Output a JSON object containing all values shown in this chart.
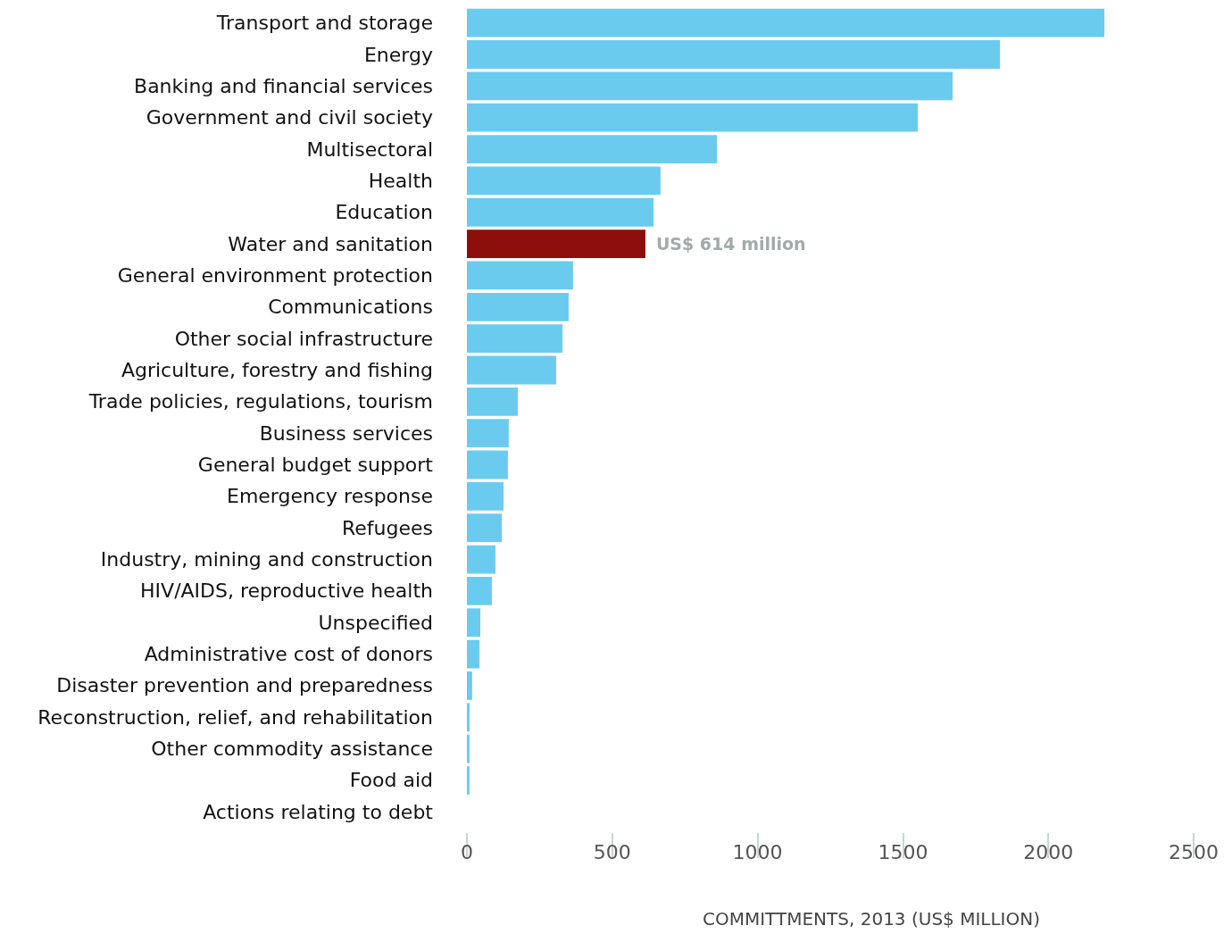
{
  "chart_data": {
    "type": "bar",
    "orientation": "horizontal",
    "xlabel": "COMMITTMENTS, 2013 (US$ MILLION)",
    "categories": [
      "Transport and storage",
      "Energy",
      "Banking and financial services",
      "Government and civil society",
      "Multisectoral",
      "Health",
      "Education",
      "Water and sanitation",
      "General environment protection",
      "Communications",
      "Other social infrastructure",
      "Agriculture, forestry and fishing",
      "Trade policies, regulations, tourism",
      "Business services",
      "General budget support",
      "Emergency response",
      "Refugees",
      "Industry, mining and construction",
      "HIV/AIDS, reproductive health",
      "Unspecified",
      "Administrative cost of donors",
      "Disaster prevention and preparedness",
      "Reconstruction, relief, and rehabilitation",
      "Other commodity assistance",
      "Food aid",
      "Actions relating to debt"
    ],
    "values": [
      2193,
      1834,
      1671,
      1551,
      860,
      666,
      642,
      614,
      365,
      350,
      329,
      307,
      175,
      144,
      141,
      126,
      120,
      98,
      86,
      46,
      43,
      18,
      9,
      9,
      9,
      0
    ],
    "colors": [
      "#6bcbef",
      "#6bcbef",
      "#6bcbef",
      "#6bcbef",
      "#6bcbef",
      "#6bcbef",
      "#6bcbef",
      "#8b0e0a",
      "#6bcbef",
      "#6bcbef",
      "#6bcbef",
      "#6bcbef",
      "#6bcbef",
      "#6bcbef",
      "#6bcbef",
      "#6bcbef",
      "#6bcbef",
      "#6bcbef",
      "#6bcbef",
      "#6bcbef",
      "#6bcbef",
      "#6bcbef",
      "#6bcbef",
      "#6bcbef",
      "#6bcbef",
      "#6bcbef"
    ],
    "value_labels": [
      null,
      null,
      null,
      null,
      null,
      null,
      null,
      "US$ 614 million",
      null,
      null,
      null,
      null,
      null,
      null,
      null,
      null,
      null,
      null,
      null,
      null,
      null,
      null,
      null,
      null,
      null,
      null
    ],
    "xlim": [
      0,
      2500
    ],
    "xticks": [
      0,
      500,
      1000,
      1500,
      2000,
      2500
    ],
    "grid": false
  }
}
